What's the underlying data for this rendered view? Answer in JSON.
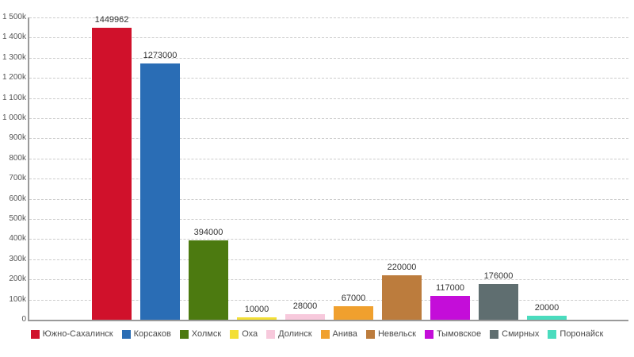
{
  "chart_data": {
    "type": "bar",
    "title": "",
    "xlabel": "",
    "ylabel": "",
    "categories": [
      "Южно-Сахалинск",
      "Корсаков",
      "Холмск",
      "Оха",
      "Долинск",
      "Анива",
      "Невельск",
      "Тымовское",
      "Смирных",
      "Поронайск"
    ],
    "values": [
      1449962,
      1273000,
      394000,
      10000,
      28000,
      67000,
      220000,
      117000,
      176000,
      20000
    ],
    "value_labels": [
      "1449962",
      "1273000",
      "394000",
      "10000",
      "28000",
      "67000",
      "220000",
      "117000",
      "176000",
      "20000"
    ],
    "colors": [
      "#d0112b",
      "#2a6db5",
      "#4c7a10",
      "#f3df35",
      "#f7c9dc",
      "#f0a02e",
      "#bc7c3d",
      "#c40dd9",
      "#5f6e70",
      "#4adcbe"
    ],
    "ylim": [
      0,
      1500000
    ],
    "y_tick_labels": [
      "0",
      "100k",
      "200k",
      "300k",
      "400k",
      "500k",
      "600k",
      "700k",
      "800k",
      "900k",
      "1 000k",
      "1 100k",
      "1 200k",
      "1 300k",
      "1 400k",
      "1 500k"
    ],
    "grid": "horizontal-dashed",
    "legend_position": "bottom",
    "axis_color": "#9a9a9a",
    "gridline_color": "#cccccc",
    "tick_label_color": "#555555",
    "value_label_color": "#333333",
    "legend_label_color": "#4a4a4a"
  }
}
